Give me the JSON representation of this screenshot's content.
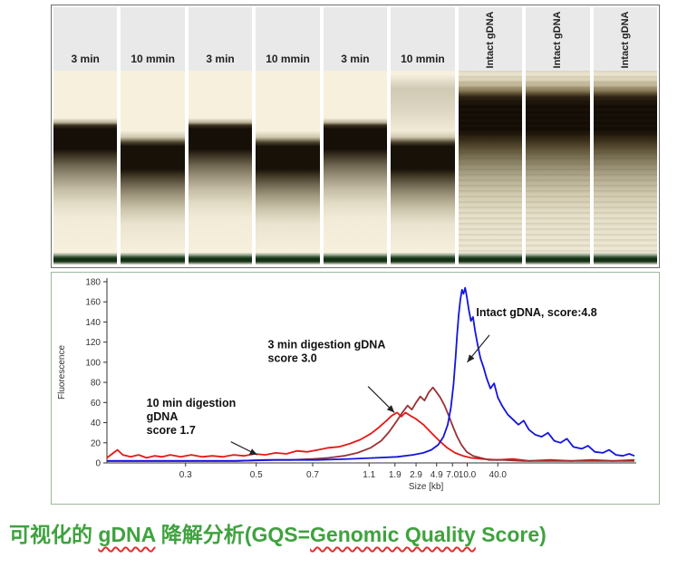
{
  "gel": {
    "lanes": [
      {
        "label": "3 min"
      },
      {
        "label": "10 mmin"
      },
      {
        "label": "3 min"
      },
      {
        "label": "10 mmin"
      },
      {
        "label": "3 min"
      },
      {
        "label": "10 mmin"
      },
      {
        "label": "Intact gDNA"
      },
      {
        "label": "Intact gDNA"
      },
      {
        "label": "Intact gDNA"
      }
    ]
  },
  "chart_data": {
    "type": "line",
    "title": "",
    "xlabel": "Size [kb]",
    "ylabel": "Fluorescence",
    "ylim": [
      0,
      180
    ],
    "grid": false,
    "legend": "annotations-with-arrows",
    "y_ticks": [
      0,
      20,
      40,
      60,
      80,
      100,
      120,
      140,
      160,
      180
    ],
    "x_ticks": [
      {
        "label": "0.3",
        "f": 0.149
      },
      {
        "label": "0.5",
        "f": 0.283
      },
      {
        "label": "0.7",
        "f": 0.39
      },
      {
        "label": "1.1",
        "f": 0.497
      },
      {
        "label": "1.9",
        "f": 0.546
      },
      {
        "label": "2.9",
        "f": 0.586
      },
      {
        "label": "4.9",
        "f": 0.625
      },
      {
        "label": "7.0",
        "f": 0.655
      },
      {
        "label": "10.0",
        "f": 0.683
      },
      {
        "label": "40.0",
        "f": 0.741
      }
    ],
    "series": [
      {
        "name": "10 min digestion gDNA score 1.7",
        "color": "#e81717",
        "peak_kb": 1.9,
        "peak_fluorescence": 50,
        "points": [
          [
            0,
            5
          ],
          [
            0.01,
            9
          ],
          [
            0.02,
            13
          ],
          [
            0.03,
            8
          ],
          [
            0.045,
            6
          ],
          [
            0.06,
            8
          ],
          [
            0.075,
            5
          ],
          [
            0.09,
            7
          ],
          [
            0.105,
            6
          ],
          [
            0.12,
            8
          ],
          [
            0.14,
            6
          ],
          [
            0.16,
            8
          ],
          [
            0.18,
            6
          ],
          [
            0.2,
            7
          ],
          [
            0.22,
            6
          ],
          [
            0.24,
            8
          ],
          [
            0.26,
            7
          ],
          [
            0.28,
            9
          ],
          [
            0.3,
            8
          ],
          [
            0.32,
            10
          ],
          [
            0.34,
            9
          ],
          [
            0.36,
            12
          ],
          [
            0.38,
            11
          ],
          [
            0.4,
            13
          ],
          [
            0.42,
            15
          ],
          [
            0.44,
            16
          ],
          [
            0.46,
            19
          ],
          [
            0.48,
            23
          ],
          [
            0.5,
            29
          ],
          [
            0.515,
            35
          ],
          [
            0.53,
            42
          ],
          [
            0.54,
            47
          ],
          [
            0.55,
            50
          ],
          [
            0.558,
            46
          ],
          [
            0.566,
            50
          ],
          [
            0.575,
            47
          ],
          [
            0.585,
            44
          ],
          [
            0.6,
            38
          ],
          [
            0.615,
            30
          ],
          [
            0.63,
            22
          ],
          [
            0.645,
            15
          ],
          [
            0.66,
            10
          ],
          [
            0.675,
            7
          ],
          [
            0.69,
            5
          ],
          [
            0.71,
            4
          ],
          [
            0.74,
            3
          ],
          [
            0.77,
            4
          ],
          [
            0.8,
            2
          ],
          [
            0.84,
            3
          ],
          [
            0.88,
            2
          ],
          [
            0.92,
            3
          ],
          [
            0.96,
            2
          ],
          [
            1,
            3
          ]
        ]
      },
      {
        "name": "3 min digestion gDNA score 3.0",
        "color": "#9a3136",
        "peak_kb": 4.5,
        "peak_fluorescence": 75,
        "points": [
          [
            0,
            2
          ],
          [
            0.05,
            2
          ],
          [
            0.1,
            2
          ],
          [
            0.15,
            2
          ],
          [
            0.2,
            2
          ],
          [
            0.25,
            2
          ],
          [
            0.3,
            3
          ],
          [
            0.35,
            3
          ],
          [
            0.39,
            4
          ],
          [
            0.42,
            5
          ],
          [
            0.45,
            7
          ],
          [
            0.475,
            10
          ],
          [
            0.5,
            15
          ],
          [
            0.52,
            22
          ],
          [
            0.535,
            31
          ],
          [
            0.55,
            42
          ],
          [
            0.56,
            50
          ],
          [
            0.57,
            57
          ],
          [
            0.578,
            53
          ],
          [
            0.586,
            60
          ],
          [
            0.594,
            66
          ],
          [
            0.602,
            62
          ],
          [
            0.61,
            70
          ],
          [
            0.618,
            75
          ],
          [
            0.625,
            70
          ],
          [
            0.632,
            65
          ],
          [
            0.64,
            57
          ],
          [
            0.648,
            47
          ],
          [
            0.656,
            36
          ],
          [
            0.664,
            26
          ],
          [
            0.672,
            18
          ],
          [
            0.682,
            11
          ],
          [
            0.694,
            7
          ],
          [
            0.708,
            5
          ],
          [
            0.725,
            3
          ],
          [
            0.75,
            3
          ],
          [
            0.79,
            2
          ],
          [
            0.84,
            2
          ],
          [
            0.9,
            2
          ],
          [
            1,
            2
          ]
        ]
      },
      {
        "name": "Intact gDNA, score:4.8",
        "color": "#1414dd",
        "peak_kb": 10.0,
        "peak_fluorescence": 174,
        "points": [
          [
            0,
            2
          ],
          [
            0.08,
            2
          ],
          [
            0.16,
            2
          ],
          [
            0.24,
            2
          ],
          [
            0.32,
            3
          ],
          [
            0.4,
            3
          ],
          [
            0.46,
            4
          ],
          [
            0.51,
            5
          ],
          [
            0.55,
            6
          ],
          [
            0.58,
            8
          ],
          [
            0.6,
            10
          ],
          [
            0.615,
            13
          ],
          [
            0.628,
            18
          ],
          [
            0.638,
            26
          ],
          [
            0.646,
            38
          ],
          [
            0.652,
            55
          ],
          [
            0.657,
            78
          ],
          [
            0.661,
            105
          ],
          [
            0.664,
            128
          ],
          [
            0.667,
            148
          ],
          [
            0.67,
            162
          ],
          [
            0.673,
            172
          ],
          [
            0.676,
            168
          ],
          [
            0.679,
            174
          ],
          [
            0.682,
            166
          ],
          [
            0.686,
            152
          ],
          [
            0.69,
            141
          ],
          [
            0.694,
            145
          ],
          [
            0.698,
            131
          ],
          [
            0.703,
            117
          ],
          [
            0.708,
            104
          ],
          [
            0.714,
            95
          ],
          [
            0.72,
            84
          ],
          [
            0.727,
            74
          ],
          [
            0.734,
            79
          ],
          [
            0.741,
            65
          ],
          [
            0.75,
            56
          ],
          [
            0.76,
            48
          ],
          [
            0.77,
            43
          ],
          [
            0.78,
            38
          ],
          [
            0.79,
            42
          ],
          [
            0.8,
            33
          ],
          [
            0.812,
            28
          ],
          [
            0.824,
            26
          ],
          [
            0.836,
            30
          ],
          [
            0.848,
            22
          ],
          [
            0.86,
            20
          ],
          [
            0.872,
            24
          ],
          [
            0.884,
            16
          ],
          [
            0.9,
            14
          ],
          [
            0.912,
            17
          ],
          [
            0.925,
            11
          ],
          [
            0.94,
            10
          ],
          [
            0.952,
            13
          ],
          [
            0.965,
            8
          ],
          [
            0.978,
            7
          ],
          [
            0.99,
            9
          ],
          [
            1,
            7
          ]
        ]
      }
    ],
    "annotations": [
      {
        "lines": [
          "10 min digestion",
          "gDNA",
          "score 1.7"
        ],
        "f": 0.075,
        "v": 56,
        "arrow": [
          0.235,
          21,
          0.285,
          8
        ]
      },
      {
        "lines": [
          "3 min digestion gDNA",
          "score 3.0"
        ],
        "f": 0.305,
        "v": 114,
        "arrow": [
          0.495,
          76,
          0.545,
          50
        ]
      },
      {
        "lines": [
          "Intact gDNA, score:4.8"
        ],
        "f": 0.7,
        "v": 146,
        "arrow": [
          0.725,
          127,
          0.683,
          100
        ]
      }
    ]
  },
  "caption": {
    "color": "#3fa23f",
    "underline_color": "#e03030",
    "parts": [
      {
        "text": "可视化的 ",
        "wavy": false
      },
      {
        "text": "gDNA",
        "wavy": true
      },
      {
        "text": " 降解分析",
        "wavy": false
      },
      {
        "text": "(GQS=",
        "wavy": false
      },
      {
        "text": "Genomic Quality",
        "wavy": true
      },
      {
        "text": " Score)",
        "wavy": false
      }
    ]
  }
}
